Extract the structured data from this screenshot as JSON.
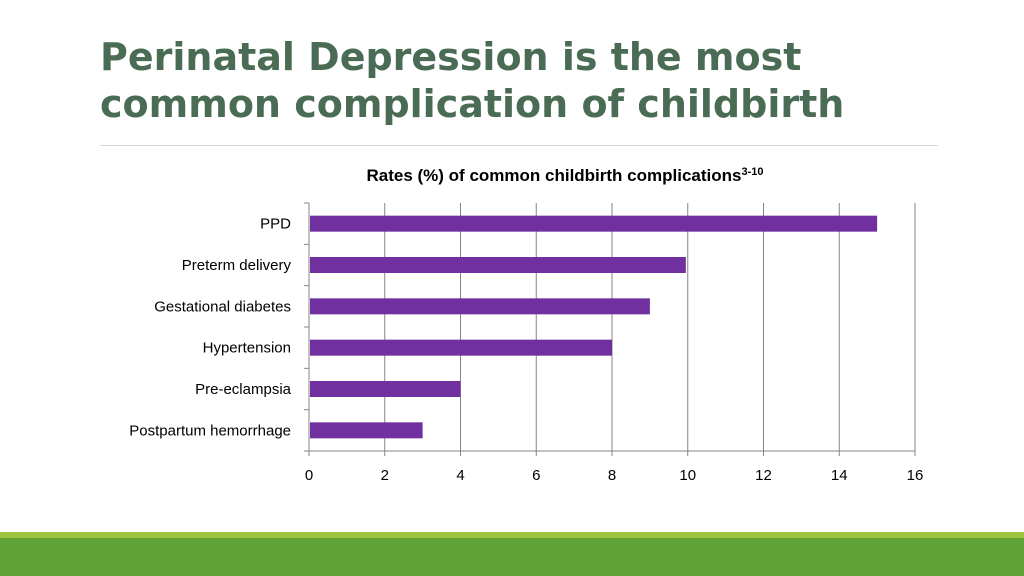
{
  "slide": {
    "title_line1": "Perinatal Depression is the most",
    "title_line2": "common complication of childbirth"
  },
  "colors": {
    "title": "#4a6b54",
    "bar": "#7030a0",
    "band_light": "#9cc43f",
    "band_dark": "#5fa235"
  },
  "chart_data": {
    "type": "bar",
    "orientation": "horizontal",
    "title": "Rates (%) of common childbirth complications",
    "title_superscript": "3-10",
    "categories": [
      "PPD",
      "Preterm delivery",
      "Gestational diabetes",
      "Hypertension",
      "Pre-eclampsia",
      "Postpartum hemorrhage"
    ],
    "values": [
      15,
      9.95,
      9,
      8,
      4,
      3
    ],
    "xlim": [
      0,
      16
    ],
    "xticks": [
      "0",
      "2",
      "4",
      "6",
      "8",
      "10",
      "12",
      "14",
      "16"
    ],
    "grid": true,
    "legend": false
  }
}
